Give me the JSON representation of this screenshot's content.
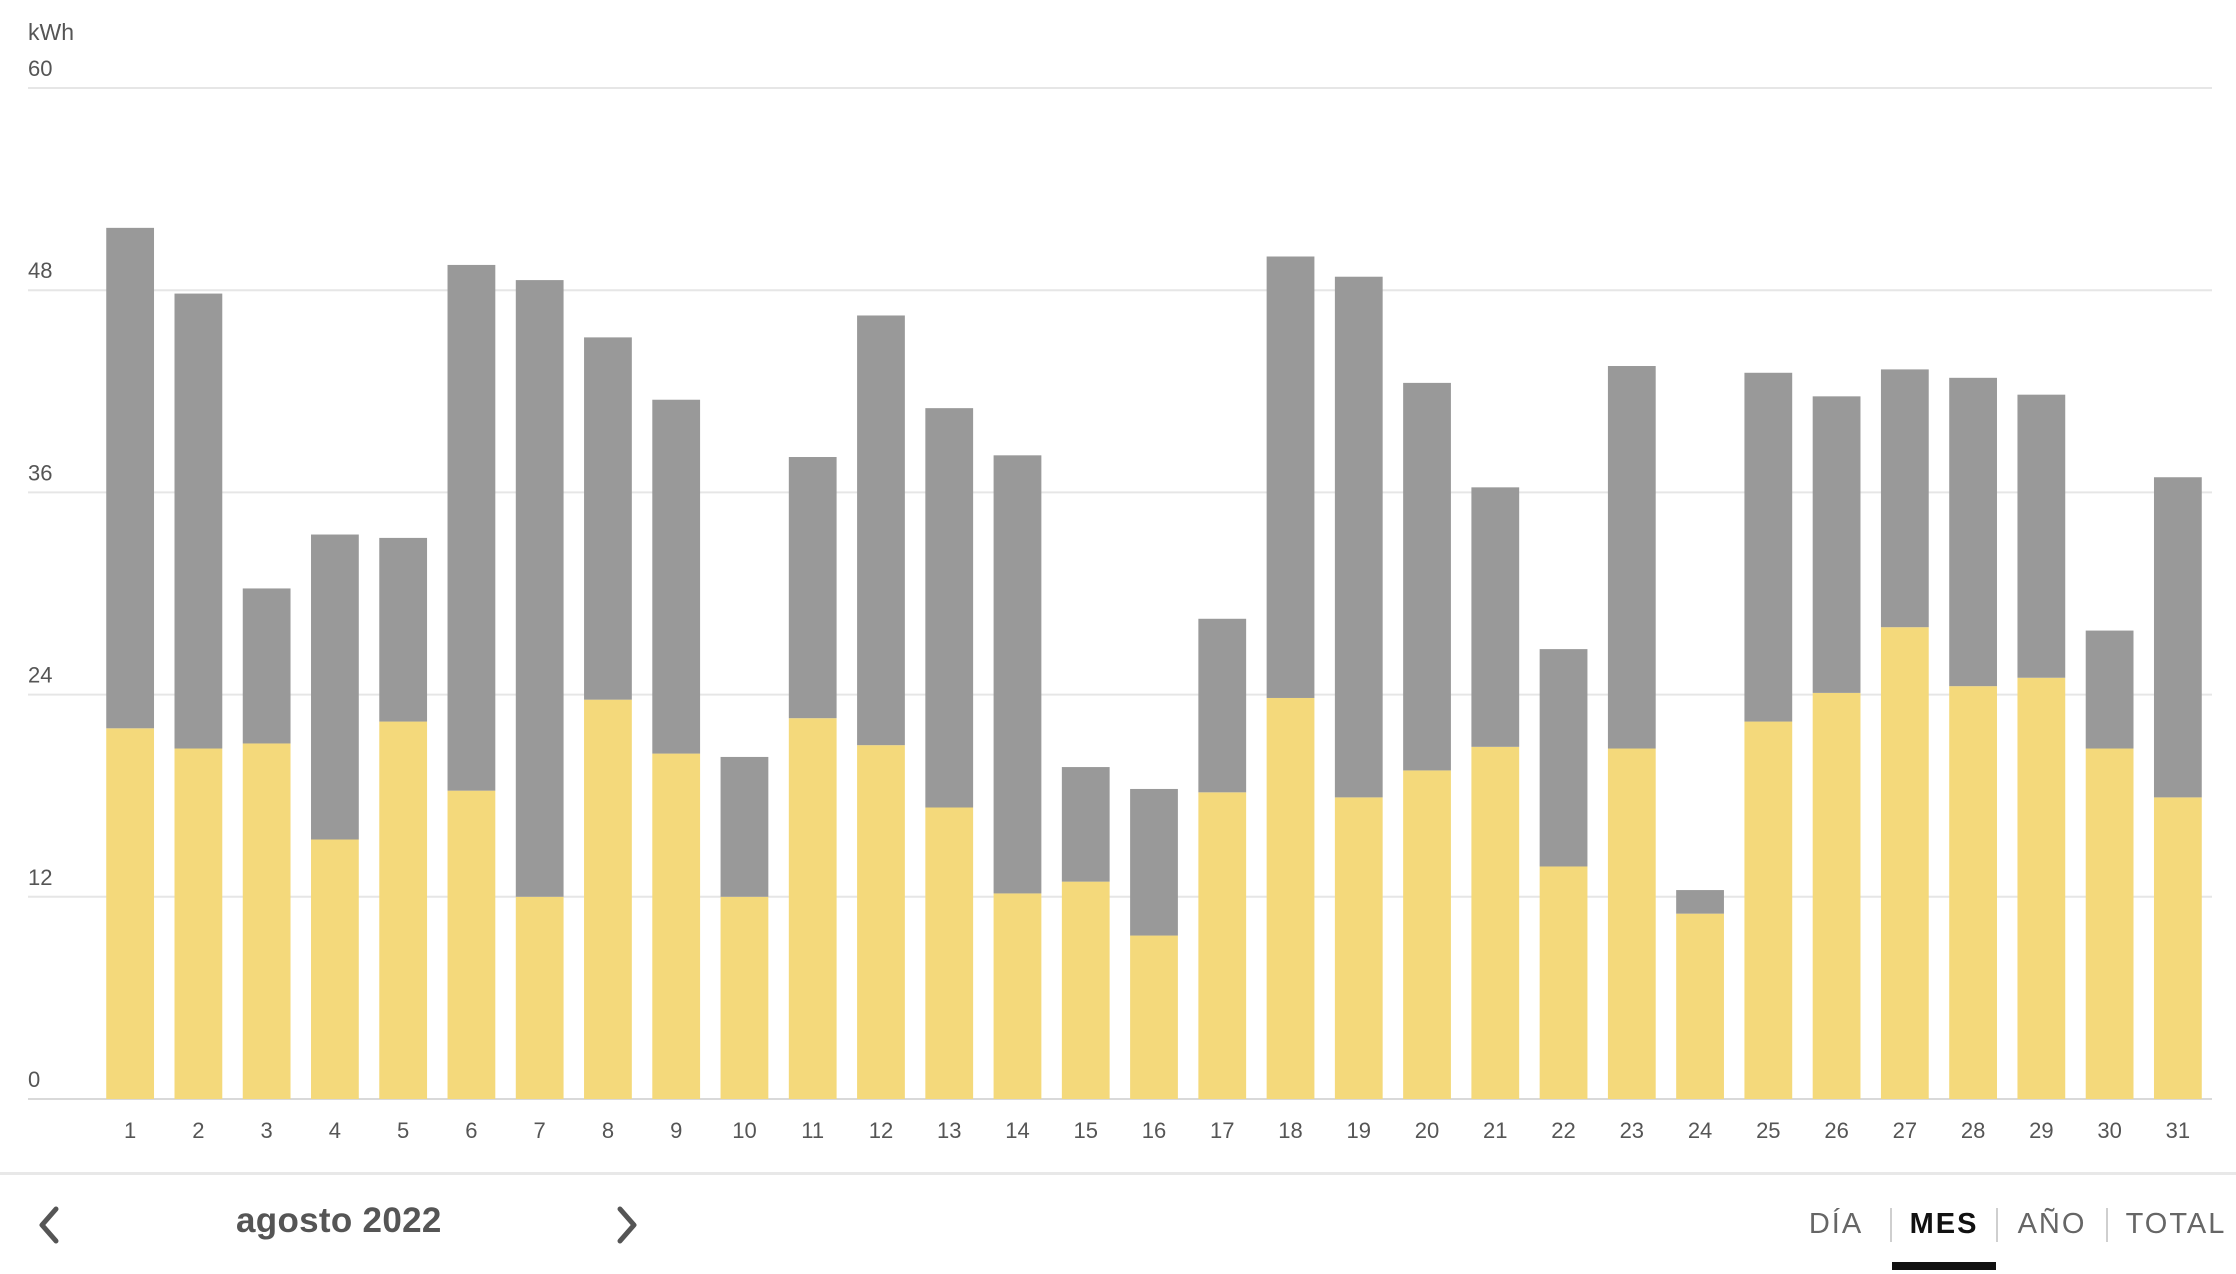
{
  "colors": {
    "yellow": "#f4d97b",
    "gray": "#999999"
  },
  "chart_data": {
    "type": "bar",
    "stacked": true,
    "ylabel": "kWh",
    "ylim": [
      0,
      60
    ],
    "yticks": [
      0,
      12,
      24,
      36,
      48,
      60
    ],
    "grid": true,
    "categories": [
      "1",
      "2",
      "3",
      "4",
      "5",
      "6",
      "7",
      "8",
      "9",
      "10",
      "11",
      "12",
      "13",
      "14",
      "15",
      "16",
      "17",
      "18",
      "19",
      "20",
      "21",
      "22",
      "23",
      "24",
      "25",
      "26",
      "27",
      "28",
      "29",
      "30",
      "31"
    ],
    "series": [
      {
        "color": "yellow",
        "values": [
          22.0,
          20.8,
          21.1,
          15.4,
          22.4,
          18.3,
          12.0,
          23.7,
          20.5,
          12.0,
          22.6,
          21.0,
          17.3,
          12.2,
          12.9,
          9.7,
          18.2,
          23.8,
          17.9,
          19.5,
          20.9,
          13.8,
          20.8,
          11.0,
          22.4,
          24.1,
          28.0,
          24.5,
          25.0,
          20.8,
          17.9
        ]
      },
      {
        "color": "gray",
        "values": [
          29.7,
          27.0,
          9.2,
          18.1,
          10.9,
          31.2,
          36.6,
          21.5,
          21.0,
          8.3,
          15.5,
          25.5,
          23.7,
          26.0,
          6.8,
          8.7,
          10.3,
          26.2,
          30.9,
          23.0,
          15.4,
          12.9,
          22.7,
          1.4,
          20.7,
          17.6,
          15.3,
          18.3,
          16.8,
          7.0,
          19.0
        ]
      }
    ]
  },
  "footer": {
    "period_label": "agosto 2022",
    "prev_icon": "chevron-left-icon",
    "next_icon": "chevron-right-icon",
    "tabs": [
      {
        "label": "DÍA",
        "active": false
      },
      {
        "label": "MES",
        "active": true
      },
      {
        "label": "AÑO",
        "active": false
      },
      {
        "label": "TOTAL",
        "active": false
      }
    ]
  }
}
